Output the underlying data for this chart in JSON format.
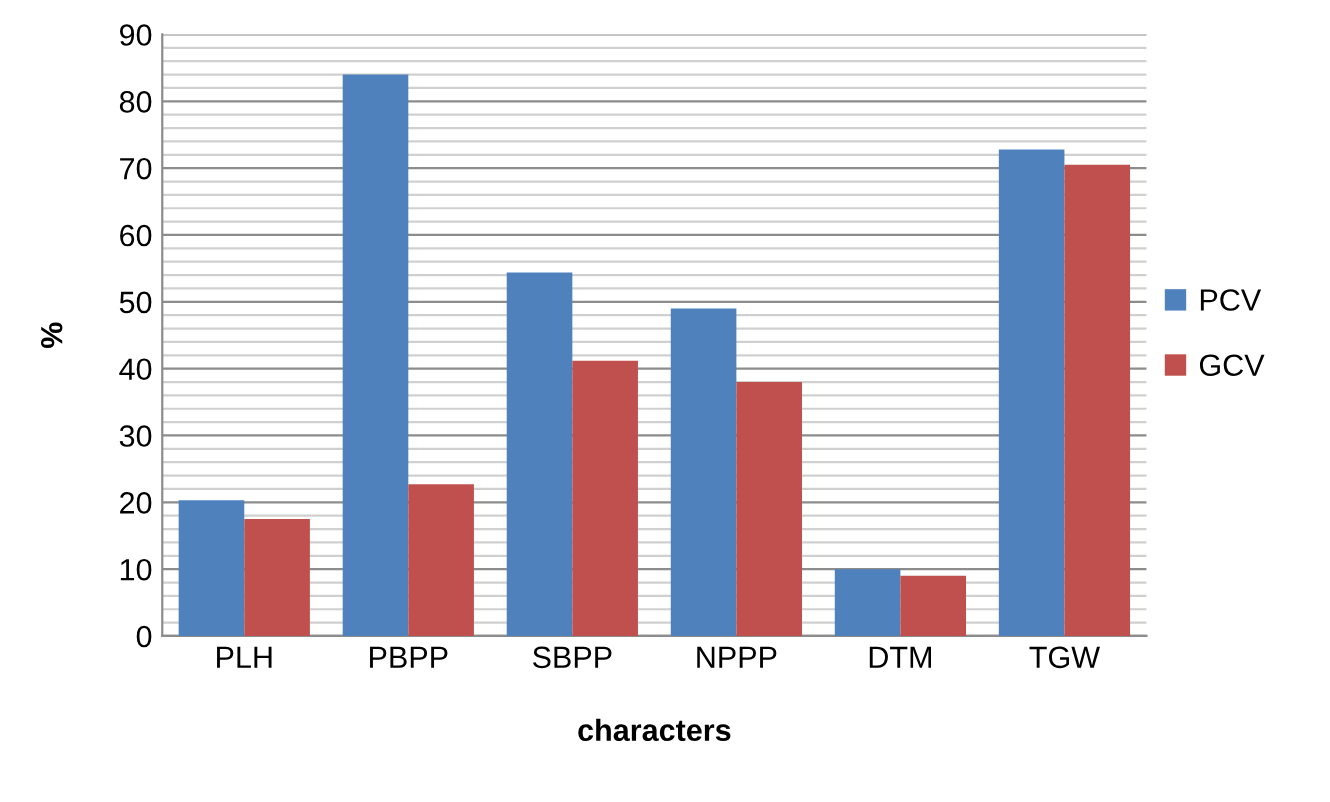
{
  "chart_data": {
    "type": "bar",
    "xlabel": "characters",
    "ylabel": "%",
    "categories": [
      "PLH",
      "PBPP",
      "SBPP",
      "NPPP",
      "DTM",
      "TGW"
    ],
    "series": [
      {
        "name": "PCV",
        "color": "#4f81bd",
        "values": [
          20.3,
          84,
          54.4,
          49,
          10,
          72.8
        ]
      },
      {
        "name": "GCV",
        "color": "#c0504d",
        "values": [
          17.5,
          22.7,
          41.2,
          38,
          9,
          70.5
        ]
      }
    ],
    "ylim": [
      0,
      90
    ],
    "yticks": [
      0,
      10,
      20,
      30,
      40,
      50,
      60,
      70,
      80,
      90
    ],
    "grid": "y",
    "legend": "right"
  }
}
